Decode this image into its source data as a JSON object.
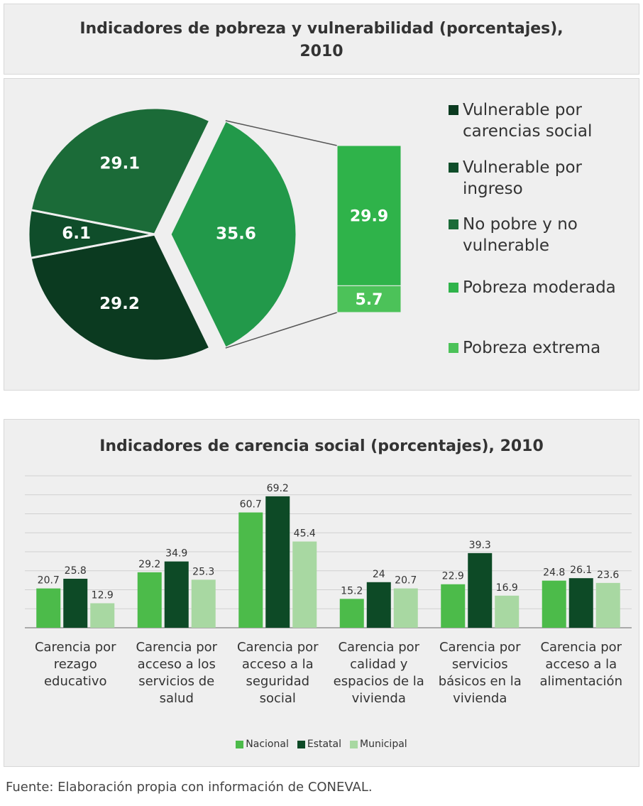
{
  "chart_data": [
    {
      "type": "pie",
      "title": "Indicadores de pobreza y vulnerabilidad (porcentajes), 2010",
      "slices": [
        {
          "value": 35.6,
          "color": "#22994a"
        },
        {
          "name": "Vulnerable por carencias social",
          "value": 29.2,
          "color": "#0b3a20"
        },
        {
          "name": "Vulnerable por ingreso",
          "value": 6.1,
          "color": "#0f4d2a"
        },
        {
          "name": "No pobre y no vulnerable",
          "value": 29.1,
          "color": "#1b6b38"
        }
      ],
      "bar_segments": [
        {
          "name": "Pobreza moderada",
          "value": 29.9,
          "color": "#2fb34a"
        },
        {
          "name": "Pobreza extrema",
          "value": 5.7,
          "color": "#4cc259"
        }
      ]
    },
    {
      "type": "bar",
      "title": "Indicadores de carencia social (porcentajes), 2010",
      "categories": [
        "Carencia por rezago educativo",
        "Carencia por acceso a los servicios de salud",
        "Carencia por acceso a la seguridad social",
        "Carencia por calidad y espacios de la vivienda",
        "Carencia por servicios básicos en la vivienda",
        "Carencia por acceso a la alimentación"
      ],
      "series": [
        {
          "name": "Nacional",
          "color": "#4cbb4a",
          "values": [
            20.7,
            29.2,
            60.7,
            15.2,
            22.9,
            24.8
          ]
        },
        {
          "name": "Estatal",
          "color": "#0d4a26",
          "values": [
            25.8,
            34.9,
            69.2,
            24,
            39.3,
            26.1
          ]
        },
        {
          "name": "Municipal",
          "color": "#a8d8a2",
          "values": [
            12.9,
            25.3,
            45.4,
            20.7,
            16.9,
            23.6
          ]
        }
      ],
      "ylim": [
        0,
        80
      ],
      "yticks": [
        0,
        10,
        20,
        30,
        40,
        50,
        60,
        70,
        80
      ],
      "grid": true
    }
  ],
  "source": "Fuente: Elaboración propia con información de CONEVAL."
}
